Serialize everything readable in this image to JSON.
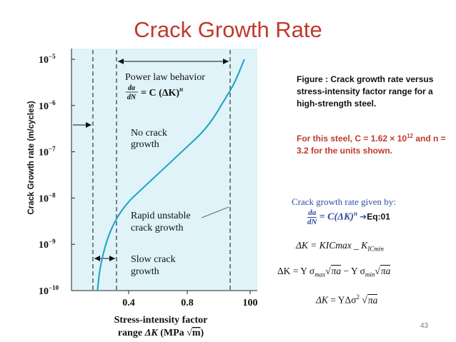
{
  "slide": {
    "title": "Crack Growth Rate",
    "page_number": "43"
  },
  "chart_data": {
    "type": "line",
    "ylabel": "Crack Growth rate (m/cycles)",
    "xlabel_line1": "Stress-intensity factor",
    "xlabel_line2_prefix": "range",
    "xlabel_delta": "ΔK",
    "xlabel_units_prefix": "(MPa",
    "xlabel_units_root": "m",
    "xlabel_units_suffix": ")",
    "y_scale": "log",
    "ylim": [
      1e-10,
      1e-05
    ],
    "y_ticks": [
      {
        "base": "10",
        "exp": "−5",
        "value": -5
      },
      {
        "base": "10",
        "exp": "−6",
        "value": -6
      },
      {
        "base": "10",
        "exp": "−7",
        "value": -7
      },
      {
        "base": "10",
        "exp": "−8",
        "value": -8
      },
      {
        "base": "10",
        "exp": "−9",
        "value": -9
      },
      {
        "base": "10",
        "exp": "−10",
        "value": -10
      }
    ],
    "x_tick_labels": [
      "0.4",
      "0.8",
      "100"
    ],
    "region_labels": {
      "power_law_line1": "Power law behavior",
      "power_law_eq": "= C (ΔK)",
      "power_law_exp": "n",
      "da": "da",
      "dN": "dN",
      "no_growth_line1": "No crack",
      "no_growth_line2": "growth",
      "rapid_line1": "Rapid unstable",
      "rapid_line2": "crack growth",
      "slow_line1": "Slow crack",
      "slow_line2": "growth"
    },
    "curve_log10_rate": [
      [
        0.14,
        -10.0
      ],
      [
        0.15,
        -9.6
      ],
      [
        0.17,
        -9.2
      ],
      [
        0.2,
        -8.8
      ],
      [
        0.24,
        -8.45
      ],
      [
        0.3,
        -8.1
      ],
      [
        0.38,
        -7.8
      ],
      [
        0.46,
        -7.5
      ],
      [
        0.54,
        -7.2
      ],
      [
        0.62,
        -6.9
      ],
      [
        0.7,
        -6.6
      ],
      [
        0.76,
        -6.3
      ],
      [
        0.82,
        -5.9
      ],
      [
        0.88,
        -5.5
      ],
      [
        0.93,
        -5.0
      ]
    ]
  },
  "caption": {
    "text": "Figure : Crack growth rate versus stress-intensity factor range for a high-strength steel."
  },
  "steel_note": {
    "prefix": "For this steel, C = 1.62 × 10",
    "exp": "12",
    "suffix": " and n = 3.2 for the units shown."
  },
  "equations": {
    "given_by": "Crack growth rate given by:",
    "eq1_num": "da",
    "eq1_den": "dN",
    "eq1_rhs": "= C(ΔK)",
    "eq1_exp": "n",
    "eq1_arrow": "➔",
    "eq1_tag": "Eq:01",
    "eq2_lhs": "ΔK = KICmax",
    "eq2_mid": " _ ",
    "eq2_k": "K",
    "eq2_sub": "ICmin",
    "eq3_a": "ΔK = Y σ",
    "eq3_sub1": "max",
    "eq3_root1": "πa",
    "eq3_b": " − Y σ",
    "eq3_sub2": "min",
    "eq3_root2": "πa",
    "eq4_a": "ΔK",
    "eq4_b": " = YΔσ",
    "eq4_sup": "2",
    "eq4_root": "πa"
  }
}
